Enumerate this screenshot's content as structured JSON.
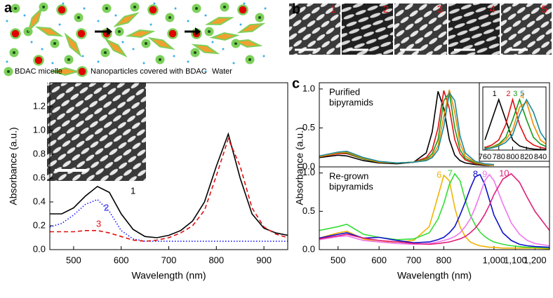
{
  "figure": {
    "panel_labels": [
      "a",
      "b",
      "c"
    ],
    "schematic_legend": [
      "BDAC micelle",
      "Nanoparticles covered with BDAC",
      "Water"
    ],
    "image_labels": [
      "1",
      "2",
      "3",
      "4",
      "5"
    ]
  },
  "chart_data": [
    {
      "type": "line",
      "xlabel": "Wavelength (nm)",
      "ylabel": "Absorbance (a.u.)",
      "xlim": [
        450,
        950
      ],
      "xticks": [
        500,
        600,
        700,
        800,
        900
      ],
      "ylim": [
        0,
        1.4
      ],
      "yticks": [
        {
          "value": 0,
          "label": "0.0"
        },
        0.2,
        0.4,
        0.6,
        0.8,
        {
          "value": 1,
          "label": "1.0"
        },
        1.2
      ],
      "x": [
        450,
        475,
        500,
        525,
        550,
        575,
        600,
        625,
        650,
        675,
        700,
        725,
        750,
        775,
        800,
        825,
        850,
        875,
        900,
        925,
        950
      ],
      "series": [
        {
          "name": "1",
          "color": "#000000",
          "line_style": "solid",
          "values": [
            0.3,
            0.3,
            0.35,
            0.45,
            0.53,
            0.48,
            0.3,
            0.17,
            0.11,
            0.1,
            0.12,
            0.16,
            0.24,
            0.4,
            0.7,
            0.97,
            0.6,
            0.3,
            0.18,
            0.14,
            0.12
          ]
        },
        {
          "name": "2",
          "color": "#1a1aff",
          "line_style": "dotted",
          "values": [
            0.19,
            0.22,
            0.29,
            0.38,
            0.42,
            0.32,
            0.16,
            0.09,
            0.07,
            0.07,
            0.07,
            0.07,
            0.07,
            0.07,
            0.07,
            0.07,
            0.07,
            0.07,
            0.07,
            0.07,
            0.07
          ]
        },
        {
          "name": "3",
          "color": "#e01010",
          "line_style": "dashed",
          "values": [
            0.15,
            0.15,
            0.15,
            0.16,
            0.16,
            0.14,
            0.11,
            0.08,
            0.07,
            0.08,
            0.1,
            0.14,
            0.2,
            0.33,
            0.62,
            0.93,
            0.7,
            0.35,
            0.19,
            0.13,
            0.1
          ]
        }
      ]
    },
    {
      "type": "line",
      "ylabel": "Absorbance (a.u.)",
      "annotation": [
        "Purified",
        "bipyramids"
      ],
      "xscale": "log",
      "xlim": [
        460,
        1280
      ],
      "ylim": [
        0,
        1.08
      ],
      "yticks": [
        {
          "value": 0,
          "label": "0.0"
        },
        0.5,
        {
          "value": 1,
          "label": "1.0"
        }
      ],
      "x": [
        460,
        500,
        520,
        560,
        600,
        650,
        700,
        740,
        760,
        780,
        800,
        820,
        840,
        860,
        880,
        920,
        960,
        1000
      ],
      "series": [
        {
          "color": "#000000",
          "line_style": "solid",
          "values": [
            0.12,
            0.15,
            0.14,
            0.08,
            0.05,
            0.04,
            0.06,
            0.18,
            0.45,
            0.97,
            0.75,
            0.35,
            0.15,
            0.08,
            0.05,
            0.03,
            0.02,
            0.02
          ]
        },
        {
          "color": "#e01010",
          "line_style": "solid",
          "values": [
            0.13,
            0.17,
            0.17,
            0.1,
            0.06,
            0.05,
            0.06,
            0.12,
            0.22,
            0.5,
            0.98,
            0.75,
            0.35,
            0.17,
            0.09,
            0.04,
            0.03,
            0.02
          ]
        },
        {
          "color": "#1a9a1a",
          "line_style": "solid",
          "values": [
            0.13,
            0.18,
            0.18,
            0.1,
            0.06,
            0.05,
            0.06,
            0.1,
            0.17,
            0.35,
            0.85,
            0.95,
            0.5,
            0.22,
            0.11,
            0.05,
            0.03,
            0.02
          ]
        },
        {
          "color": "#f08c00",
          "line_style": "solid",
          "values": [
            0.13,
            0.18,
            0.19,
            0.11,
            0.06,
            0.05,
            0.06,
            0.09,
            0.14,
            0.27,
            0.65,
            0.99,
            0.7,
            0.3,
            0.14,
            0.06,
            0.03,
            0.02
          ]
        },
        {
          "color": "#1a8a9a",
          "line_style": "solid",
          "values": [
            0.14,
            0.19,
            0.2,
            0.12,
            0.07,
            0.05,
            0.06,
            0.08,
            0.12,
            0.22,
            0.52,
            0.95,
            0.85,
            0.4,
            0.18,
            0.07,
            0.04,
            0.03
          ]
        }
      ]
    },
    {
      "type": "line",
      "xlabel": "Wavelength (nm)",
      "annotation": [
        "Re-grown",
        "bipyramids"
      ],
      "xscale": "log",
      "xlim": [
        460,
        1280
      ],
      "xticks": [
        500,
        600,
        700,
        800,
        {
          "value": 1000,
          "label": "1,000"
        },
        {
          "value": 1100,
          "label": "1,100"
        },
        {
          "value": 1200,
          "label": "1,200"
        }
      ],
      "ylim": [
        0,
        1.08
      ],
      "yticks": [
        {
          "value": 0,
          "label": "0.0"
        },
        0.5,
        {
          "value": 1,
          "label": "1.0"
        }
      ],
      "x": [
        460,
        500,
        520,
        560,
        600,
        650,
        700,
        750,
        780,
        800,
        820,
        840,
        860,
        880,
        900,
        920,
        940,
        960,
        980,
        1000,
        1040,
        1080,
        1120,
        1160,
        1200,
        1280
      ],
      "series": [
        {
          "name": "6",
          "color": "#f2b400",
          "line_style": "solid",
          "values": [
            0.15,
            0.22,
            0.24,
            0.14,
            0.1,
            0.1,
            0.12,
            0.3,
            0.7,
            0.97,
            0.9,
            0.55,
            0.3,
            0.17,
            0.1,
            0.07,
            0.05,
            0.04,
            0.03,
            0.03,
            0.02,
            0.02,
            0.02,
            0.02,
            0.02,
            0.01
          ]
        },
        {
          "name": "7",
          "color": "#33dd33",
          "line_style": "solid",
          "values": [
            0.25,
            0.3,
            0.33,
            0.2,
            0.16,
            0.13,
            0.14,
            0.22,
            0.4,
            0.6,
            0.85,
            0.99,
            0.9,
            0.65,
            0.45,
            0.32,
            0.23,
            0.17,
            0.13,
            0.1,
            0.07,
            0.05,
            0.04,
            0.03,
            0.03,
            0.02
          ]
        },
        {
          "name": "8",
          "color": "#1010cc",
          "line_style": "solid",
          "values": [
            0.15,
            0.2,
            0.22,
            0.15,
            0.16,
            0.12,
            0.09,
            0.1,
            0.13,
            0.16,
            0.22,
            0.3,
            0.45,
            0.62,
            0.8,
            0.95,
            0.98,
            0.85,
            0.65,
            0.45,
            0.22,
            0.12,
            0.07,
            0.05,
            0.04,
            0.03
          ]
        },
        {
          "name": "9",
          "color": "#ee77ee",
          "line_style": "solid",
          "values": [
            0.13,
            0.17,
            0.18,
            0.12,
            0.1,
            0.08,
            0.07,
            0.08,
            0.1,
            0.12,
            0.14,
            0.17,
            0.22,
            0.3,
            0.4,
            0.55,
            0.72,
            0.9,
            0.98,
            0.9,
            0.6,
            0.35,
            0.2,
            0.12,
            0.08,
            0.05
          ]
        },
        {
          "name": "10",
          "color": "#e0207a",
          "line_style": "solid",
          "values": [
            0.14,
            0.18,
            0.2,
            0.15,
            0.12,
            0.1,
            0.08,
            0.07,
            0.08,
            0.09,
            0.1,
            0.12,
            0.14,
            0.17,
            0.22,
            0.28,
            0.36,
            0.46,
            0.58,
            0.72,
            0.92,
            0.99,
            0.88,
            0.68,
            0.5,
            0.25
          ]
        }
      ]
    },
    {
      "type": "line",
      "xlim": [
        757,
        848
      ],
      "xticks": [
        760,
        780,
        800,
        820,
        840
      ],
      "ylim": [
        0,
        1.25
      ],
      "x": [
        760,
        770,
        780,
        790,
        800,
        810,
        820,
        830,
        840,
        850
      ],
      "series": [
        {
          "name": "1",
          "color": "#000000",
          "line_style": "solid",
          "values": [
            0.2,
            0.6,
            1.0,
            0.6,
            0.2,
            0.08,
            0.04,
            0.02,
            0.01,
            0.01
          ]
        },
        {
          "name": "2",
          "color": "#e01010",
          "line_style": "solid",
          "values": [
            0.05,
            0.1,
            0.2,
            0.5,
            1.0,
            0.5,
            0.2,
            0.1,
            0.05,
            0.03
          ]
        },
        {
          "name": "3",
          "color": "#1a9a1a",
          "line_style": "solid",
          "values": [
            0.03,
            0.06,
            0.12,
            0.25,
            0.6,
            1.0,
            0.6,
            0.25,
            0.12,
            0.06
          ]
        },
        {
          "name": "4",
          "color": "#f08c00",
          "line_style": "solid",
          "values": [
            0.02,
            0.05,
            0.1,
            0.2,
            0.4,
            0.85,
            0.95,
            0.5,
            0.2,
            0.1
          ]
        },
        {
          "name": "5",
          "color": "#1a8a9a",
          "line_style": "solid",
          "values": [
            0.02,
            0.04,
            0.08,
            0.15,
            0.3,
            0.7,
            1.0,
            0.75,
            0.35,
            0.15
          ]
        }
      ]
    }
  ]
}
